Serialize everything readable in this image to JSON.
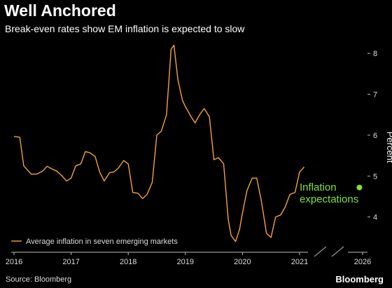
{
  "title": "Well Anchored",
  "subtitle": "Break-even rates show EM inflation is expected to slow",
  "source": "Source: Bloomberg",
  "brand": "Bloomberg",
  "colors": {
    "line": "#f5a33d",
    "callout": "#7fe13d",
    "background": "#000000",
    "axis": "#bbbbbb"
  },
  "chart_data": {
    "type": "line",
    "xlim": [
      2016,
      2026
    ],
    "ylim": [
      3.3,
      8.4
    ],
    "xticks": [
      "2016",
      "2017",
      "2018",
      "2019",
      "2020",
      "2021",
      "2026"
    ],
    "yticks": [
      "4",
      "5",
      "6",
      "7",
      "8"
    ],
    "ylabel": "Percent",
    "legend_position": "bottom-left",
    "axis_break": "between 2021 and 2026",
    "series": [
      {
        "name": "Average inflation in seven emerging markets",
        "x": [
          2016.0,
          2016.1,
          2016.17,
          2016.3,
          2016.4,
          2016.5,
          2016.58,
          2016.67,
          2016.75,
          2016.83,
          2016.92,
          2017.0,
          2017.08,
          2017.17,
          2017.25,
          2017.33,
          2017.42,
          2017.5,
          2017.58,
          2017.67,
          2017.75,
          2017.83,
          2017.92,
          2018.0,
          2018.08,
          2018.17,
          2018.25,
          2018.33,
          2018.42,
          2018.5,
          2018.58,
          2018.67,
          2018.75,
          2018.8,
          2018.87,
          2018.95,
          2019.0,
          2019.1,
          2019.17,
          2019.25,
          2019.33,
          2019.42,
          2019.5,
          2019.58,
          2019.67,
          2019.75,
          2019.8,
          2019.88,
          2019.95,
          2020.0,
          2020.08,
          2020.17,
          2020.25,
          2020.33,
          2020.42,
          2020.5,
          2020.58,
          2020.67,
          2020.75,
          2020.83,
          2020.92,
          2021.0,
          2021.08
        ],
        "values": [
          5.97,
          5.95,
          5.25,
          5.05,
          5.05,
          5.12,
          5.24,
          5.17,
          5.12,
          5.02,
          4.88,
          4.95,
          5.25,
          5.3,
          5.6,
          5.57,
          5.48,
          5.1,
          4.88,
          5.08,
          5.1,
          5.2,
          5.38,
          5.3,
          4.6,
          4.58,
          4.45,
          4.55,
          4.85,
          6.0,
          6.1,
          6.5,
          8.1,
          8.2,
          7.35,
          6.85,
          6.7,
          6.45,
          6.3,
          6.5,
          6.65,
          6.45,
          5.4,
          5.45,
          5.3,
          3.95,
          3.55,
          3.4,
          3.7,
          4.1,
          4.65,
          4.95,
          4.95,
          4.4,
          3.6,
          3.5,
          4.0,
          4.05,
          4.25,
          4.55,
          4.6,
          5.1,
          5.22
        ]
      }
    ],
    "callout": {
      "label_line1": "Inflation",
      "label_line2": "expectations",
      "point": {
        "x": 2025.7,
        "y": 4.72
      }
    }
  }
}
